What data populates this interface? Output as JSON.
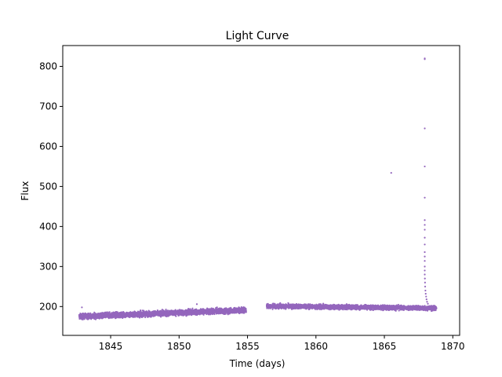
{
  "chart_data": {
    "type": "scatter",
    "title": "Light Curve",
    "xlabel": "Time (days)",
    "ylabel": "Flux",
    "xlim": [
      1841.5,
      1870.5
    ],
    "ylim": [
      128,
      852
    ],
    "x_ticks": [
      1845,
      1850,
      1855,
      1860,
      1865,
      1870
    ],
    "y_ticks": [
      200,
      300,
      400,
      500,
      600,
      700,
      800
    ],
    "grid": false,
    "legend": "none",
    "marker_color": "#9467bd",
    "band_segments": [
      {
        "x_start": 1842.7,
        "x_end": 1854.9,
        "y_start": 175,
        "y_end": 191,
        "spread": 6
      },
      {
        "x_start": 1856.4,
        "x_end": 1868.8,
        "y_start": 201,
        "y_end": 196,
        "spread": 5
      }
    ],
    "outliers": [
      {
        "x": 1842.9,
        "y": 198
      },
      {
        "x": 1851.3,
        "y": 206
      },
      {
        "x": 1865.5,
        "y": 534
      },
      {
        "x": 1867.95,
        "y": 818
      },
      {
        "x": 1867.95,
        "y": 820
      },
      {
        "x": 1867.95,
        "y": 645
      },
      {
        "x": 1867.95,
        "y": 550
      },
      {
        "x": 1867.95,
        "y": 472
      },
      {
        "x": 1867.95,
        "y": 416
      },
      {
        "x": 1867.95,
        "y": 404
      },
      {
        "x": 1867.95,
        "y": 392
      },
      {
        "x": 1867.95,
        "y": 372
      },
      {
        "x": 1867.95,
        "y": 355
      },
      {
        "x": 1867.95,
        "y": 336
      },
      {
        "x": 1867.95,
        "y": 325
      },
      {
        "x": 1867.95,
        "y": 314
      },
      {
        "x": 1867.95,
        "y": 300
      },
      {
        "x": 1867.95,
        "y": 290
      },
      {
        "x": 1867.95,
        "y": 280
      },
      {
        "x": 1867.96,
        "y": 270
      },
      {
        "x": 1867.97,
        "y": 260
      },
      {
        "x": 1867.98,
        "y": 250
      },
      {
        "x": 1868.0,
        "y": 240
      },
      {
        "x": 1868.02,
        "y": 232
      },
      {
        "x": 1868.05,
        "y": 225
      },
      {
        "x": 1868.08,
        "y": 218
      },
      {
        "x": 1868.12,
        "y": 212
      },
      {
        "x": 1868.18,
        "y": 207
      }
    ]
  }
}
